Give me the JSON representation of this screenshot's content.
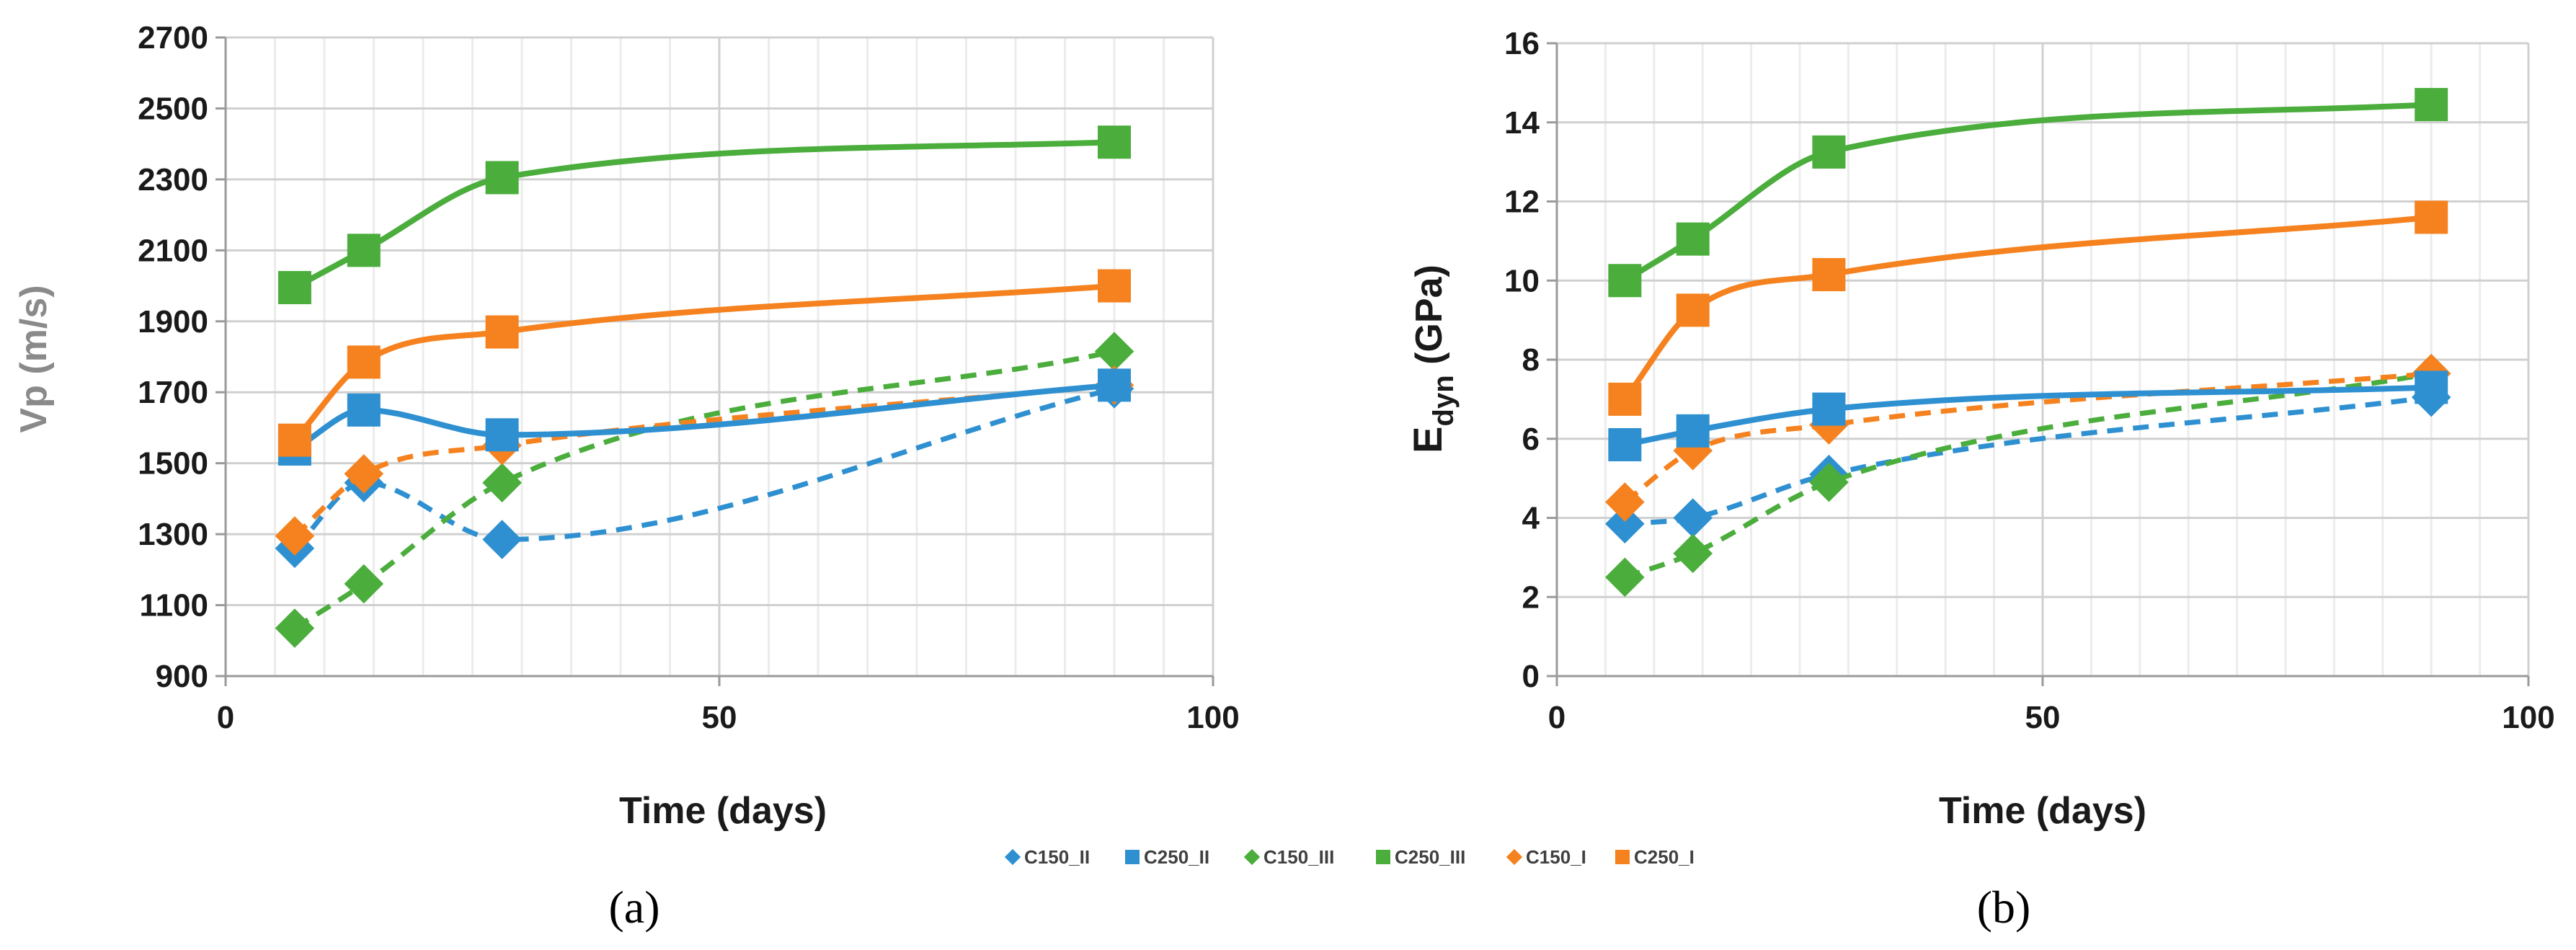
{
  "colors": {
    "blue": "#2e90d1",
    "green": "#4aad3c",
    "orange": "#f5821f",
    "grid_major": "#d0d0d0",
    "grid_minor": "#ececec",
    "axis": "#9a9a9a"
  },
  "legend": [
    {
      "name": "C150_II",
      "color": "#2e90d1",
      "marker": "diamond",
      "dashed": true
    },
    {
      "name": "C250_II",
      "color": "#2e90d1",
      "marker": "square",
      "dashed": false
    },
    {
      "name": "C150_III",
      "color": "#4aad3c",
      "marker": "diamond",
      "dashed": true
    },
    {
      "name": "C250_III",
      "color": "#4aad3c",
      "marker": "square",
      "dashed": false
    },
    {
      "name": "C150_I",
      "color": "#f5821f",
      "marker": "diamond",
      "dashed": true
    },
    {
      "name": "C250_I",
      "color": "#f5821f",
      "marker": "square",
      "dashed": false
    }
  ],
  "chart_data": [
    {
      "panel": "a",
      "panel_label": "(a)",
      "type": "line",
      "xlabel": "Time (days)",
      "ylabel": "Vp (m/s)",
      "xlim": [
        0,
        100
      ],
      "ylim": [
        900,
        2700
      ],
      "xticks": [
        0,
        50,
        100
      ],
      "yticks": [
        900,
        1100,
        1300,
        1500,
        1700,
        1900,
        2100,
        2300,
        2500,
        2700
      ],
      "x": [
        7,
        14,
        28,
        90
      ],
      "series": [
        {
          "name": "C150_II",
          "values": [
            1260,
            1445,
            1285,
            1710
          ]
        },
        {
          "name": "C250_II",
          "values": [
            1540,
            1650,
            1580,
            1720
          ]
        },
        {
          "name": "C150_III",
          "values": [
            1035,
            1160,
            1445,
            1815
          ]
        },
        {
          "name": "C250_III",
          "values": [
            1995,
            2100,
            2305,
            2405
          ]
        },
        {
          "name": "C150_I",
          "values": [
            1295,
            1470,
            1550,
            1720
          ]
        },
        {
          "name": "C250_I",
          "values": [
            1565,
            1785,
            1870,
            2000
          ]
        }
      ]
    },
    {
      "panel": "b",
      "panel_label": "(b)",
      "type": "line",
      "xlabel": "Time (days)",
      "ylabel_main": "E",
      "ylabel_sub": "dyn",
      "ylabel_unit": " (GPa)",
      "xlim": [
        0,
        100
      ],
      "ylim": [
        0,
        16
      ],
      "xticks": [
        0,
        50,
        100
      ],
      "yticks": [
        0,
        2,
        4,
        6,
        8,
        10,
        12,
        14,
        16
      ],
      "x": [
        7,
        14,
        28,
        90
      ],
      "series": [
        {
          "name": "C150_II",
          "values": [
            3.85,
            4.0,
            5.1,
            7.05
          ]
        },
        {
          "name": "C250_II",
          "values": [
            5.85,
            6.2,
            6.75,
            7.3
          ]
        },
        {
          "name": "C150_III",
          "values": [
            2.5,
            3.1,
            4.9,
            7.65
          ]
        },
        {
          "name": "C250_III",
          "values": [
            10.0,
            11.05,
            13.25,
            14.45
          ]
        },
        {
          "name": "C150_I",
          "values": [
            4.4,
            5.7,
            6.35,
            7.65
          ]
        },
        {
          "name": "C250_I",
          "values": [
            7.0,
            9.25,
            10.15,
            11.6
          ]
        }
      ]
    }
  ]
}
